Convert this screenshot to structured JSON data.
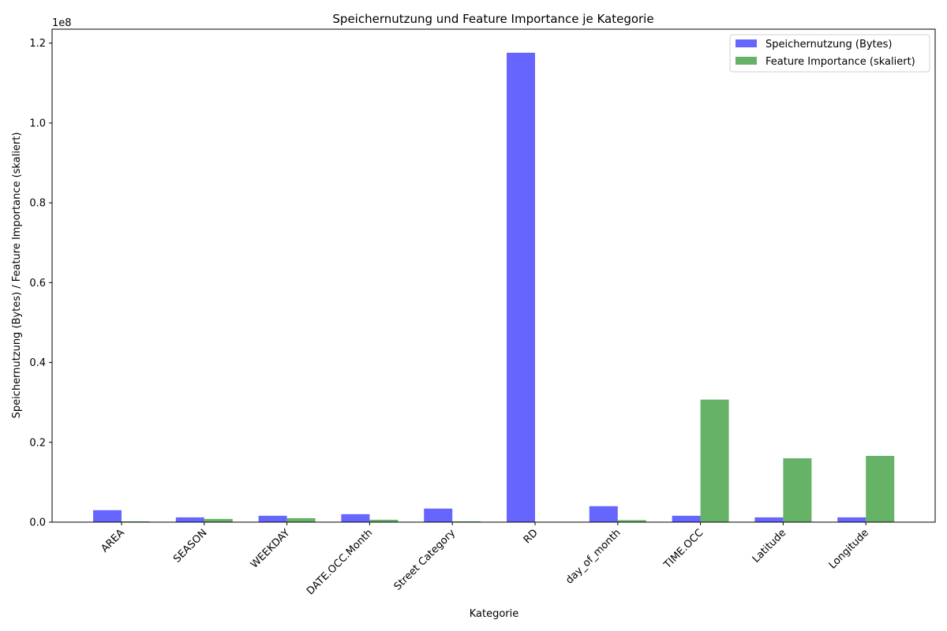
{
  "chart_data": {
    "type": "bar",
    "title": "Speichernutzung und Feature Importance je Kategorie",
    "xlabel": "Kategorie",
    "ylabel": "Speichernutzung (Bytes) / Feature Importance (skaliert)",
    "y_offset_text": "1e8",
    "ylim": [
      0,
      1.235
    ],
    "yticks": [
      0.0,
      0.2,
      0.4,
      0.6,
      0.8,
      1.0,
      1.2
    ],
    "ytick_labels": [
      "0.0",
      "0.2",
      "0.4",
      "0.6",
      "0.8",
      "1.0",
      "1.2"
    ],
    "categories": [
      "AREA",
      "SEASON",
      "WEEKDAY",
      "DATE.OCC.Month",
      "Street Category",
      "RD",
      "day_of_month",
      "TIME.OCC",
      "Latitude",
      "Longitude"
    ],
    "series": [
      {
        "name": "Speichernutzung (Bytes)",
        "color": "#6666ff",
        "values": [
          0.03,
          0.012,
          0.016,
          0.02,
          0.034,
          1.176,
          0.04,
          0.016,
          0.012,
          0.012
        ]
      },
      {
        "name": "Feature Importance (skaliert)",
        "color": "#66b266",
        "values": [
          0.002,
          0.008,
          0.01,
          0.006,
          0.002,
          0.0,
          0.005,
          0.307,
          0.16,
          0.166
        ]
      }
    ],
    "legend_position": "top-right",
    "grid": false
  }
}
